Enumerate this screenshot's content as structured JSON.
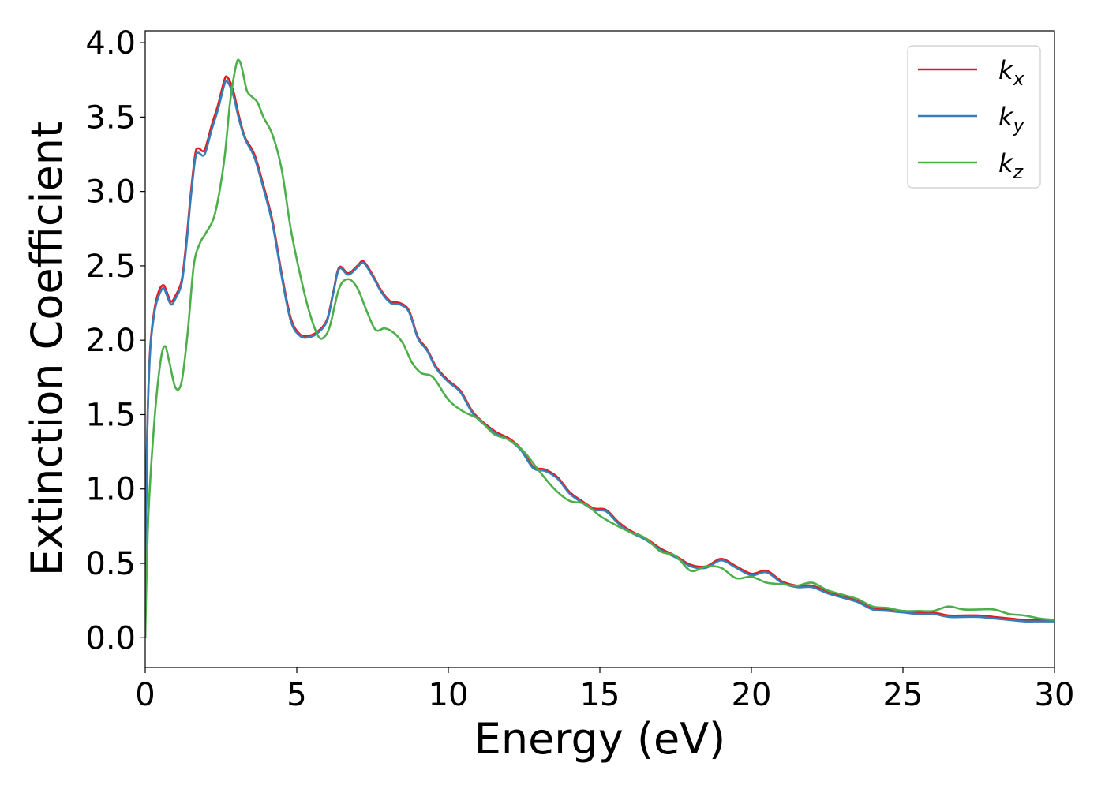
{
  "chart_data": {
    "type": "line",
    "title": "",
    "xlabel": "Energy (eV)",
    "ylabel": "Extinction Coefficient",
    "xlim": [
      0,
      30
    ],
    "ylim": [
      -0.2,
      4.08
    ],
    "xticks": [
      0,
      5,
      10,
      15,
      20,
      25,
      30
    ],
    "xtick_labels": [
      "0",
      "5",
      "10",
      "15",
      "20",
      "25",
      "30"
    ],
    "yticks": [
      0.0,
      0.5,
      1.0,
      1.5,
      2.0,
      2.5,
      3.0,
      3.5,
      4.0
    ],
    "ytick_labels": [
      "0.0",
      "0.5",
      "1.0",
      "1.5",
      "2.0",
      "2.5",
      "3.0",
      "3.5",
      "4.0"
    ],
    "grid": false,
    "legend_position": "top-right",
    "series": [
      {
        "name": "kx",
        "label_base": "k",
        "label_sub": "x",
        "color": "#e41a1c",
        "x": [
          0,
          0.05,
          0.15,
          0.3,
          0.45,
          0.6,
          0.7,
          0.85,
          1.0,
          1.2,
          1.35,
          1.5,
          1.65,
          1.75,
          1.9,
          2.0,
          2.2,
          2.4,
          2.6,
          2.7,
          2.9,
          3.1,
          3.3,
          3.6,
          3.9,
          4.2,
          4.5,
          4.8,
          5.1,
          5.4,
          5.7,
          6.0,
          6.2,
          6.4,
          6.7,
          7.0,
          7.2,
          7.5,
          7.8,
          8.1,
          8.4,
          8.7,
          9.0,
          9.3,
          9.6,
          10.0,
          10.4,
          10.8,
          11.2,
          11.6,
          12.0,
          12.4,
          12.8,
          13.2,
          13.6,
          14.0,
          14.4,
          14.8,
          15.2,
          15.6,
          16.0,
          16.5,
          17.0,
          17.5,
          18.0,
          18.5,
          19.0,
          19.5,
          20.0,
          20.5,
          21.0,
          21.5,
          22.0,
          22.5,
          23.0,
          23.5,
          24.0,
          24.5,
          25.0,
          25.5,
          26.0,
          26.5,
          27.0,
          27.5,
          28.0,
          28.5,
          29.0,
          29.5,
          30.0
        ],
        "y": [
          0.0,
          1.2,
          1.9,
          2.2,
          2.33,
          2.37,
          2.33,
          2.26,
          2.3,
          2.4,
          2.65,
          2.98,
          3.25,
          3.29,
          3.27,
          3.3,
          3.45,
          3.58,
          3.74,
          3.77,
          3.68,
          3.5,
          3.36,
          3.25,
          3.04,
          2.8,
          2.45,
          2.15,
          2.04,
          2.03,
          2.06,
          2.14,
          2.32,
          2.49,
          2.45,
          2.5,
          2.53,
          2.44,
          2.33,
          2.26,
          2.25,
          2.2,
          2.02,
          1.94,
          1.82,
          1.73,
          1.66,
          1.52,
          1.44,
          1.38,
          1.34,
          1.27,
          1.15,
          1.13,
          1.08,
          0.98,
          0.92,
          0.87,
          0.86,
          0.78,
          0.72,
          0.67,
          0.6,
          0.55,
          0.49,
          0.48,
          0.53,
          0.48,
          0.43,
          0.45,
          0.38,
          0.35,
          0.35,
          0.31,
          0.28,
          0.25,
          0.2,
          0.19,
          0.18,
          0.17,
          0.17,
          0.15,
          0.15,
          0.15,
          0.14,
          0.13,
          0.12,
          0.12,
          0.12
        ]
      },
      {
        "name": "ky",
        "label_base": "k",
        "label_sub": "y",
        "color": "#377eb8",
        "x": [
          0,
          0.05,
          0.15,
          0.3,
          0.45,
          0.6,
          0.7,
          0.85,
          1.0,
          1.2,
          1.35,
          1.5,
          1.65,
          1.75,
          1.9,
          2.0,
          2.2,
          2.4,
          2.6,
          2.7,
          2.9,
          3.1,
          3.3,
          3.6,
          3.9,
          4.2,
          4.5,
          4.8,
          5.1,
          5.4,
          5.7,
          6.0,
          6.2,
          6.4,
          6.7,
          7.0,
          7.2,
          7.5,
          7.8,
          8.1,
          8.4,
          8.7,
          9.0,
          9.3,
          9.6,
          10.0,
          10.4,
          10.8,
          11.2,
          11.6,
          12.0,
          12.4,
          12.8,
          13.2,
          13.6,
          14.0,
          14.4,
          14.8,
          15.2,
          15.6,
          16.0,
          16.5,
          17.0,
          17.5,
          18.0,
          18.5,
          19.0,
          19.5,
          20.0,
          20.5,
          21.0,
          21.5,
          22.0,
          22.5,
          23.0,
          23.5,
          24.0,
          24.5,
          25.0,
          25.5,
          26.0,
          26.5,
          27.0,
          27.5,
          28.0,
          28.5,
          29.0,
          29.5,
          30.0
        ],
        "y": [
          0.0,
          1.18,
          1.88,
          2.18,
          2.3,
          2.35,
          2.31,
          2.24,
          2.28,
          2.38,
          2.62,
          2.95,
          3.22,
          3.26,
          3.24,
          3.27,
          3.42,
          3.55,
          3.71,
          3.74,
          3.65,
          3.48,
          3.35,
          3.23,
          3.02,
          2.78,
          2.43,
          2.13,
          2.03,
          2.02,
          2.05,
          2.13,
          2.31,
          2.48,
          2.44,
          2.49,
          2.52,
          2.43,
          2.32,
          2.25,
          2.24,
          2.19,
          2.01,
          1.93,
          1.81,
          1.72,
          1.65,
          1.51,
          1.43,
          1.37,
          1.33,
          1.26,
          1.14,
          1.12,
          1.07,
          0.97,
          0.91,
          0.86,
          0.85,
          0.77,
          0.71,
          0.66,
          0.59,
          0.54,
          0.48,
          0.47,
          0.52,
          0.47,
          0.42,
          0.44,
          0.37,
          0.34,
          0.34,
          0.3,
          0.27,
          0.24,
          0.19,
          0.18,
          0.17,
          0.16,
          0.16,
          0.14,
          0.14,
          0.14,
          0.13,
          0.12,
          0.11,
          0.11,
          0.11
        ]
      },
      {
        "name": "kz",
        "label_base": "k",
        "label_sub": "z",
        "color": "#4daf4a",
        "x": [
          0,
          0.1,
          0.3,
          0.5,
          0.65,
          0.8,
          1.0,
          1.2,
          1.4,
          1.6,
          1.8,
          2.0,
          2.3,
          2.6,
          2.8,
          3.0,
          3.1,
          3.2,
          3.35,
          3.5,
          3.7,
          3.9,
          4.2,
          4.5,
          4.8,
          5.1,
          5.4,
          5.7,
          5.9,
          6.1,
          6.4,
          6.7,
          7.0,
          7.3,
          7.6,
          7.9,
          8.2,
          8.5,
          8.8,
          9.1,
          9.5,
          10.0,
          10.5,
          11.0,
          11.5,
          12.0,
          12.5,
          13.0,
          13.5,
          14.0,
          14.5,
          15.0,
          15.5,
          16.0,
          16.5,
          17.0,
          17.5,
          18.0,
          18.5,
          19.0,
          19.5,
          20.0,
          20.5,
          21.0,
          21.5,
          22.0,
          22.5,
          23.0,
          23.5,
          24.0,
          24.5,
          25.0,
          25.5,
          26.0,
          26.5,
          27.0,
          27.5,
          28.0,
          28.5,
          29.0,
          29.5,
          30.0
        ],
        "y": [
          0.0,
          0.8,
          1.45,
          1.85,
          1.96,
          1.85,
          1.68,
          1.72,
          2.05,
          2.5,
          2.65,
          2.72,
          2.85,
          3.2,
          3.6,
          3.85,
          3.88,
          3.82,
          3.68,
          3.64,
          3.6,
          3.5,
          3.38,
          3.15,
          2.75,
          2.45,
          2.2,
          2.03,
          2.02,
          2.1,
          2.35,
          2.41,
          2.35,
          2.2,
          2.07,
          2.08,
          2.05,
          1.98,
          1.85,
          1.78,
          1.75,
          1.6,
          1.52,
          1.47,
          1.37,
          1.33,
          1.25,
          1.12,
          1.0,
          0.92,
          0.9,
          0.82,
          0.76,
          0.71,
          0.67,
          0.58,
          0.55,
          0.45,
          0.48,
          0.47,
          0.4,
          0.41,
          0.37,
          0.36,
          0.35,
          0.37,
          0.32,
          0.29,
          0.26,
          0.21,
          0.2,
          0.18,
          0.18,
          0.18,
          0.21,
          0.19,
          0.19,
          0.19,
          0.16,
          0.15,
          0.13,
          0.12
        ]
      }
    ]
  }
}
